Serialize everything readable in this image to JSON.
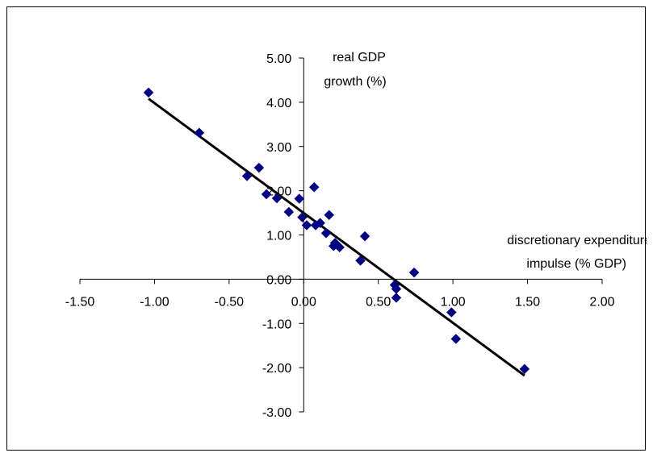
{
  "chart_data": {
    "type": "scatter",
    "xlim": [
      -1.5,
      2.0
    ],
    "ylim": [
      -3.0,
      5.0
    ],
    "x_ticks": [
      "-1.50",
      "-1.00",
      "-0.50",
      "0.00",
      "0.50",
      "1.00",
      "1.50",
      "2.00"
    ],
    "y_ticks": [
      "5.00",
      "4.00",
      "3.00",
      "2.00",
      "1.00",
      "0.00",
      "-1.00",
      "-2.00",
      "-3.00"
    ],
    "xlabel": [
      "discretionary expenditure",
      "impulse (% GDP)"
    ],
    "ylabel": [
      "real GDP",
      "growth (%)"
    ],
    "grid": false,
    "legend": "none",
    "marker_color": "#000080",
    "trendline_color": "#000000",
    "series": [
      {
        "x": [
          -1.04,
          -0.7,
          -0.38,
          -0.3,
          -0.25,
          -0.18,
          -0.1,
          -0.03,
          -0.01,
          0.02,
          0.07,
          0.08,
          0.11,
          0.15,
          0.17,
          0.2,
          0.21,
          0.24,
          0.38,
          0.41,
          0.61,
          0.62,
          0.62,
          0.74,
          0.99,
          1.02,
          1.48
        ],
        "y": [
          4.22,
          3.31,
          2.33,
          2.52,
          1.92,
          1.83,
          1.52,
          1.82,
          1.4,
          1.22,
          2.08,
          1.22,
          1.27,
          1.04,
          1.45,
          0.75,
          0.82,
          0.72,
          0.42,
          0.97,
          -0.13,
          -0.22,
          -0.42,
          0.15,
          -0.75,
          -1.35,
          -2.03
        ]
      }
    ],
    "trendline": {
      "x": [
        -1.04,
        1.48
      ],
      "y": [
        4.08,
        -2.18
      ]
    }
  }
}
